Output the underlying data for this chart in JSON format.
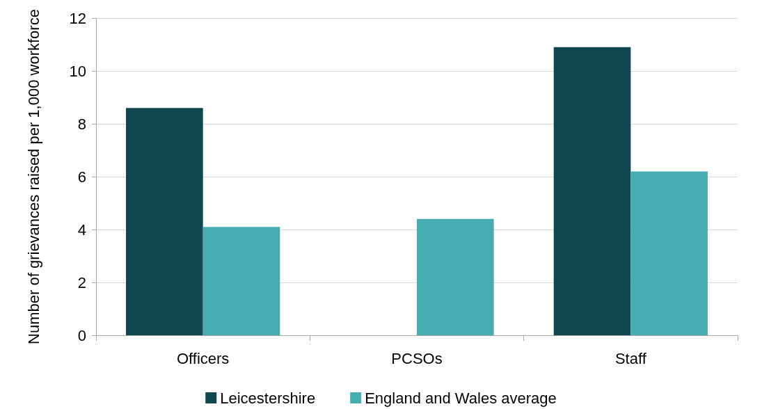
{
  "chart_data": {
    "type": "bar",
    "ylabel": "Number of grievances raised per 1,000 workforce",
    "categories": [
      "Officers",
      "PCSOs",
      "Staff"
    ],
    "series": [
      {
        "name": "Leicestershire",
        "color": "#10464f",
        "values": [
          8.6,
          null,
          10.9
        ]
      },
      {
        "name": "England and Wales average",
        "color": "#48adb3",
        "values": [
          4.1,
          4.4,
          6.2
        ]
      }
    ],
    "ylim": [
      0,
      12
    ],
    "yticks": [
      0,
      2,
      4,
      6,
      8,
      10,
      12
    ],
    "grid": "y",
    "legend": "bottom"
  }
}
